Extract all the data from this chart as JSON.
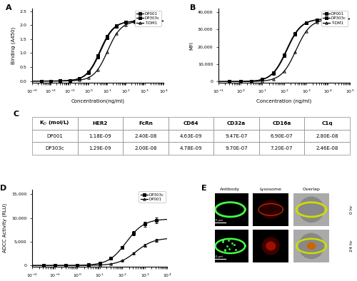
{
  "panel_A": {
    "label": "A",
    "ylabel": "Binding (A450)",
    "xlabel": "Concentration(ng/ml)",
    "xlim_log": [
      -3,
      4
    ],
    "ylim": [
      -0.05,
      2.6
    ],
    "yticks": [
      0.0,
      0.5,
      1.0,
      1.5,
      2.0,
      2.5
    ],
    "series": [
      {
        "name": "DP001",
        "ec50": 4.1,
        "top": 2.15,
        "hill": 1.2,
        "marker": "s",
        "color": "black"
      },
      {
        "name": "DP303c",
        "ec50": 4.5,
        "top": 2.15,
        "hill": 1.2,
        "marker": "s",
        "color": "black"
      },
      {
        "name": "T-DM1",
        "ec50": 10.5,
        "top": 2.15,
        "hill": 1.2,
        "marker": "^",
        "color": "black"
      }
    ],
    "pts_log": [
      -2.5,
      -2.0,
      -1.5,
      -1.0,
      -0.5,
      0.0,
      0.5,
      1.0,
      1.5,
      2.0,
      2.5,
      3.0,
      3.5
    ]
  },
  "panel_B": {
    "label": "B",
    "ylabel": "MFI",
    "xlabel": "Concentration (ng/ml)",
    "xlim_log": [
      -1,
      5
    ],
    "ylim": [
      -500,
      42000
    ],
    "yticks": [
      0,
      10000,
      20000,
      30000,
      40000
    ],
    "series": [
      {
        "name": "DP001",
        "ec50": 124.6,
        "top": 36000,
        "hill": 1.3,
        "marker": "s",
        "color": "black"
      },
      {
        "name": "DP303c",
        "ec50": 132.5,
        "top": 36000,
        "hill": 1.3,
        "marker": "s",
        "color": "black"
      },
      {
        "name": "T-DM1",
        "ec50": 345.2,
        "top": 36000,
        "hill": 1.3,
        "marker": "^",
        "color": "black"
      }
    ],
    "pts_log": [
      -0.5,
      0.0,
      0.5,
      1.0,
      1.5,
      2.0,
      2.5,
      3.0,
      3.5,
      4.0,
      4.5
    ]
  },
  "panel_C": {
    "label": "C",
    "col_headers": [
      "K_D (mol/L)",
      "HER2",
      "FcRn",
      "CD64",
      "CD32a",
      "CD16a",
      "C1q"
    ],
    "rows": [
      [
        "DP001",
        "1.18E-09",
        "2.40E-08",
        "4.63E-09",
        "9.47E-07",
        "6.90E-07",
        "2.80E-08"
      ],
      [
        "DP303c",
        "1.29E-09",
        "2.00E-08",
        "4.78E-09",
        "9.70E-07",
        "7.20E-07",
        "2.46E-08"
      ]
    ]
  },
  "panel_D": {
    "label": "D",
    "ylabel": "ADCC Activity (RLU)",
    "xlabel": "Concentration (ng/ml)",
    "xlim_log": [
      -2,
      4
    ],
    "ylim": [
      -300,
      16000
    ],
    "yticks": [
      0,
      5000,
      10000,
      15000
    ],
    "series": [
      {
        "name": "DP303c",
        "ec50": 150,
        "top": 9800,
        "hill": 1.1,
        "marker": "s",
        "color": "black"
      },
      {
        "name": "DP001",
        "ec50": 400,
        "top": 5800,
        "hill": 1.1,
        "marker": "^",
        "color": "black"
      }
    ],
    "pts_log": [
      -1.5,
      -1.0,
      -0.5,
      0.0,
      0.5,
      1.0,
      1.5,
      2.0,
      2.5,
      3.0,
      3.5
    ]
  },
  "panel_E": {
    "label": "E",
    "col_labels": [
      "Antibody",
      "Lysosome",
      "Overlap"
    ],
    "row_labels": [
      "0 hr",
      "24 hr"
    ]
  },
  "figure_bg": "#ffffff"
}
